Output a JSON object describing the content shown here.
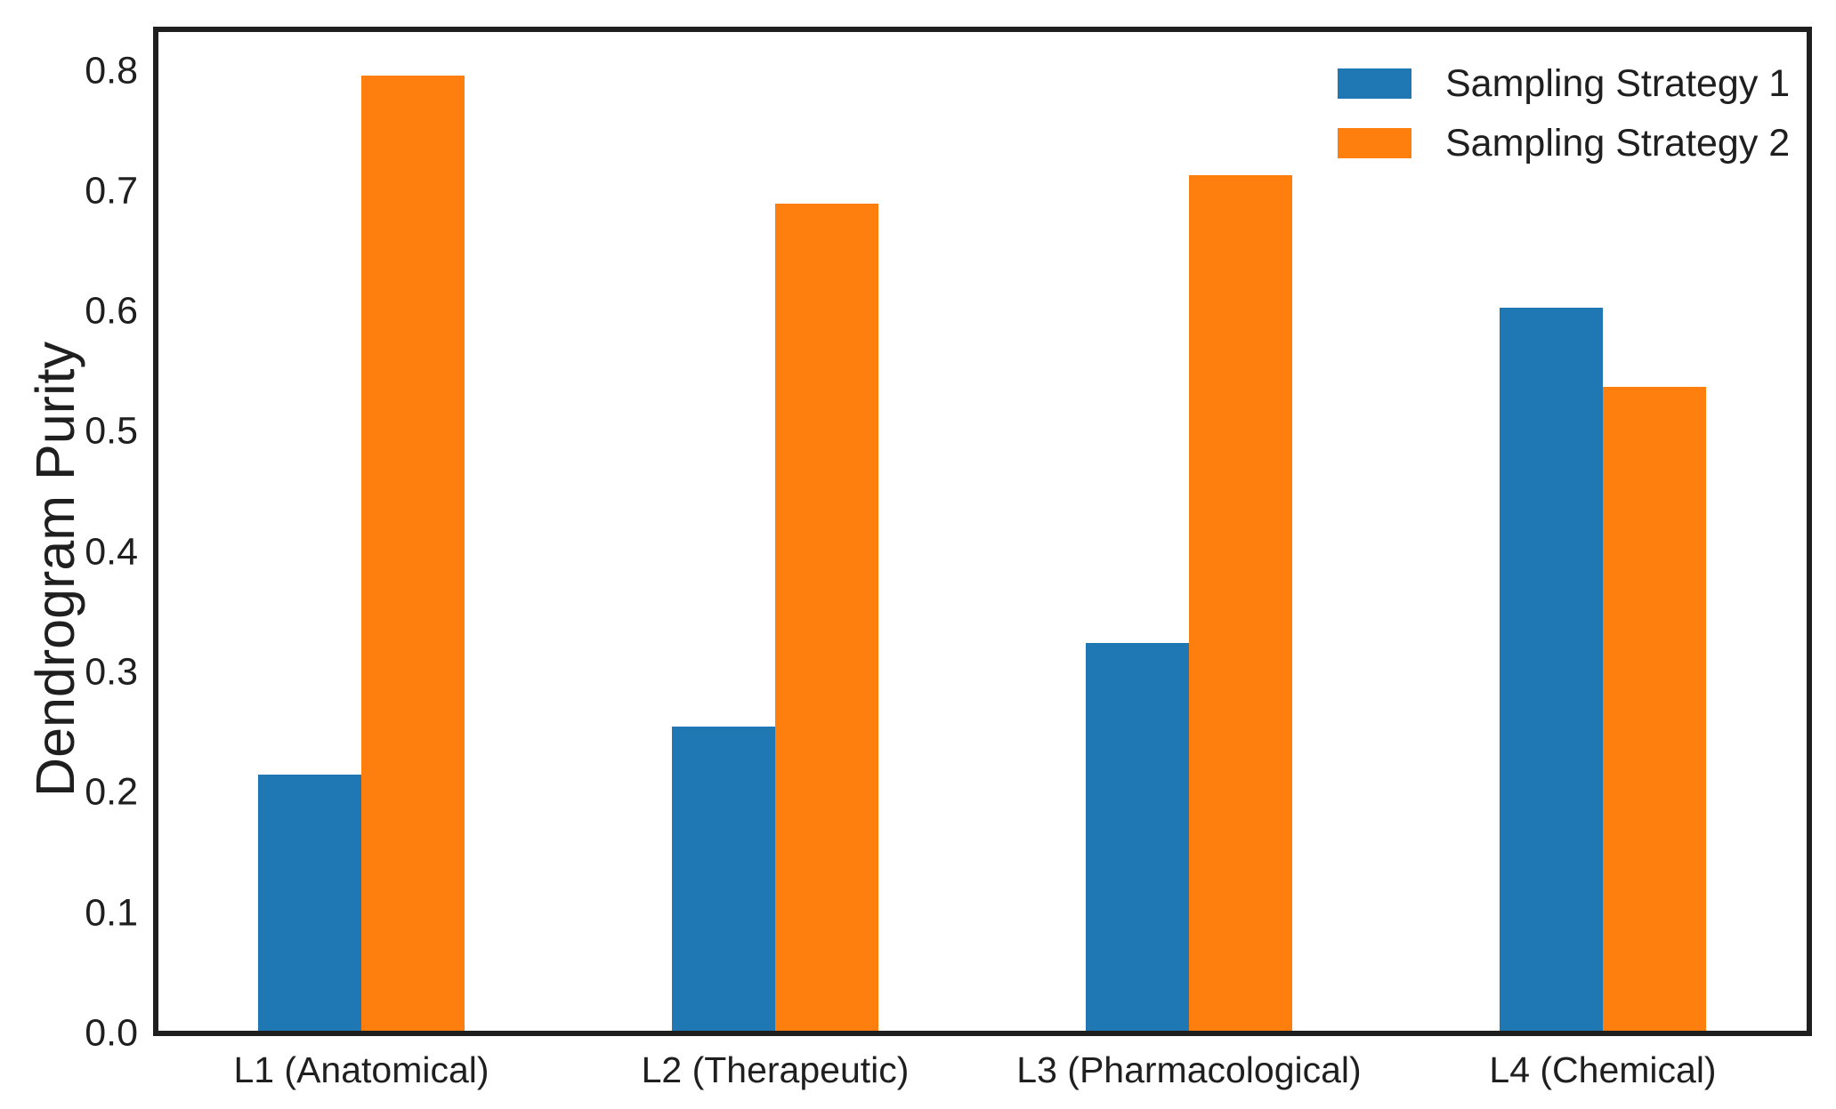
{
  "chart_data": {
    "type": "bar",
    "title": "",
    "xlabel": "",
    "ylabel": "Dendrogram Purity",
    "categories": [
      "L1 (Anatomical)",
      "L2 (Therapeutic)",
      "L3 (Pharmacological)",
      "L4 (Chemical)"
    ],
    "series": [
      {
        "name": "Sampling Strategy 1",
        "color": "#1f77b4",
        "values": [
          0.213,
          0.253,
          0.322,
          0.601
        ]
      },
      {
        "name": "Sampling Strategy 2",
        "color": "#ff7f0e",
        "values": [
          0.794,
          0.687,
          0.711,
          0.535
        ]
      }
    ],
    "ylim": [
      0,
      0.83
    ],
    "yticks": [
      0.0,
      0.1,
      0.2,
      0.3,
      0.4,
      0.5,
      0.6,
      0.7,
      0.8
    ],
    "ytick_labels": [
      "0.0",
      "0.1",
      "0.2",
      "0.3",
      "0.4",
      "0.5",
      "0.6",
      "0.7",
      "0.8"
    ],
    "grid": false,
    "legend_position": "upper right",
    "legend_frame": false
  },
  "colors": {
    "background": "#ffffff",
    "spine": "#1f1f1f",
    "text": "#1f1f1f",
    "series1": "#1f77b4",
    "series2": "#ff7f0e"
  }
}
